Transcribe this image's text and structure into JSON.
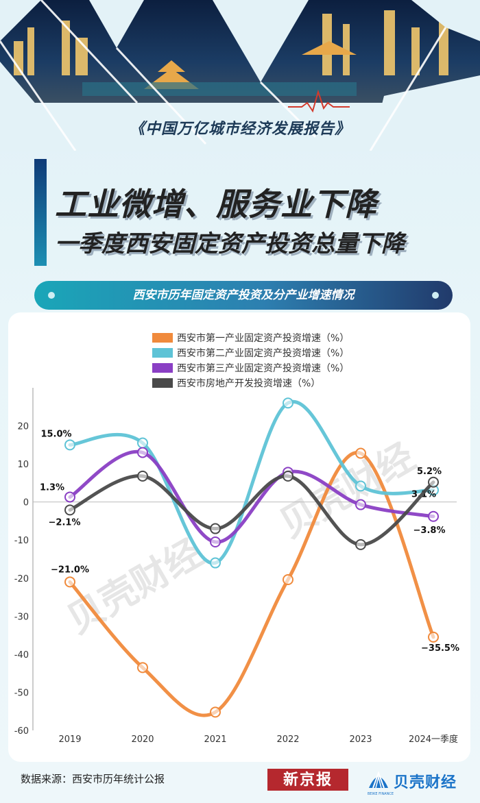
{
  "header": {
    "report_title": "《中国万亿城市经济发展报告》",
    "headline_1": "工业微增、服务业下降",
    "headline_2": "一季度西安固定资产投资总量下降",
    "section_title": "西安市历年固定资产投资及分产业增速情况"
  },
  "footer": {
    "source": "数据来源：西安市历年统计公报",
    "logo_xjb": "新京报",
    "logo_bk": "贝壳财经",
    "logo_bk_sub": "BEIKE FINANCE"
  },
  "watermark": "贝壳财经",
  "colors": {
    "primary": "#f08a3c",
    "secondary": "#5ec3d6",
    "tertiary": "#8a3fc4",
    "realestate": "#4a4a4a"
  },
  "chart_data": {
    "type": "line",
    "categories": [
      "2019",
      "2020",
      "2021",
      "2022",
      "2023",
      "2024一季度"
    ],
    "ylim": [
      -60,
      30
    ],
    "yticks": [
      -60,
      -50,
      -40,
      -30,
      -20,
      -10,
      0,
      10,
      20
    ],
    "legend_placement": "top-center",
    "series": [
      {
        "name": "西安市第一产业固定资产投资增速（%）",
        "values": [
          -21.0,
          -43.5,
          -55.2,
          -20.4,
          12.8,
          -35.5
        ],
        "labels": {
          "0": "−21.0%",
          "5": "−35.5%"
        }
      },
      {
        "name": "西安市第二产业固定资产投资增速（%）",
        "values": [
          15.0,
          15.5,
          -16.0,
          26.0,
          4.2,
          3.1
        ],
        "labels": {
          "0": "15.0%",
          "5": "3.1%"
        }
      },
      {
        "name": "西安市第三产业固定资产投资增速（%）",
        "values": [
          1.3,
          13.0,
          -10.5,
          7.8,
          -0.7,
          -3.8
        ],
        "labels": {
          "0": "1.3%",
          "5": "−3.8%"
        }
      },
      {
        "name": "西安市房地产开发投资增速（%）",
        "values": [
          -2.1,
          6.8,
          -7.0,
          6.8,
          -11.2,
          5.2
        ],
        "labels": {
          "0": "−2.1%",
          "5": "5.2%"
        }
      }
    ]
  }
}
